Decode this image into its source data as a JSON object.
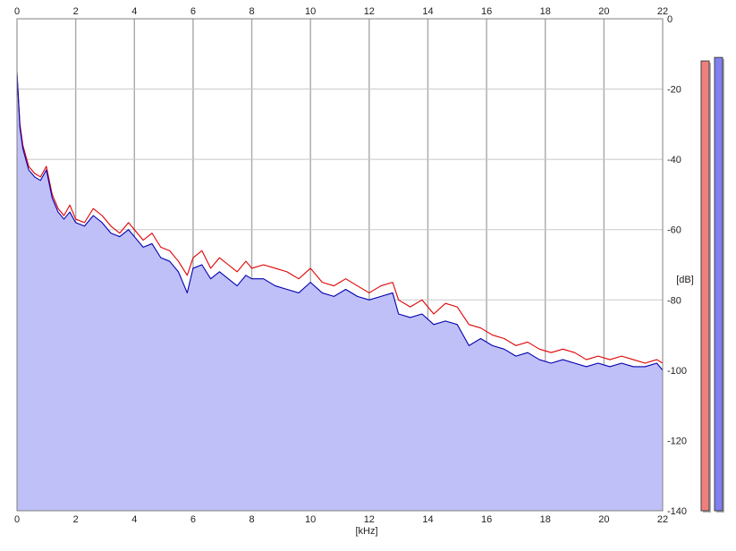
{
  "chart_data": {
    "type": "area",
    "xlabel": "[kHz]",
    "ylabel": "[dB]",
    "xlim": [
      0,
      22
    ],
    "ylim": [
      -140,
      0
    ],
    "x_ticks": [
      0,
      2,
      4,
      6,
      8,
      10,
      12,
      14,
      16,
      18,
      20,
      22
    ],
    "y_ticks": [
      0,
      -20,
      -40,
      -60,
      -80,
      -100,
      -120,
      -140
    ],
    "x_tick_labels": [
      "0",
      "2",
      "4",
      "6",
      "8",
      "10",
      "12",
      "14",
      "16",
      "18",
      "20",
      "22"
    ],
    "y_tick_labels": [
      "0",
      "-20",
      "-40",
      "-60",
      "-80",
      "-100",
      "-120",
      "-140"
    ],
    "grid": true,
    "fill_color": "#c0c0f8",
    "series": [
      {
        "color": "#e00000",
        "x": [
          0,
          0.1,
          0.2,
          0.4,
          0.6,
          0.8,
          1.0,
          1.2,
          1.4,
          1.6,
          1.8,
          2.0,
          2.3,
          2.6,
          2.9,
          3.2,
          3.5,
          3.8,
          4.0,
          4.3,
          4.6,
          4.9,
          5.2,
          5.5,
          5.8,
          6.0,
          6.3,
          6.6,
          6.9,
          7.2,
          7.5,
          7.8,
          8.0,
          8.4,
          8.8,
          9.2,
          9.6,
          10.0,
          10.4,
          10.8,
          11.2,
          11.6,
          12.0,
          12.4,
          12.8,
          13.0,
          13.4,
          13.8,
          14.2,
          14.6,
          15.0,
          15.4,
          15.8,
          16.2,
          16.6,
          17.0,
          17.4,
          17.8,
          18.2,
          18.6,
          19.0,
          19.4,
          19.8,
          20.2,
          20.6,
          21.0,
          21.4,
          21.8,
          22.0
        ],
        "values": [
          -16,
          -30,
          -36,
          -42,
          -44,
          -45,
          -42,
          -50,
          -54,
          -56,
          -53,
          -57,
          -58,
          -54,
          -56,
          -59,
          -61,
          -58,
          -60,
          -63,
          -61,
          -65,
          -66,
          -69,
          -73,
          -68,
          -66,
          -71,
          -68,
          -70,
          -72,
          -69,
          -71,
          -70,
          -71,
          -72,
          -74,
          -71,
          -75,
          -76,
          -74,
          -76,
          -78,
          -76,
          -75,
          -80,
          -82,
          -80,
          -84,
          -81,
          -82,
          -87,
          -88,
          -90,
          -91,
          -93,
          -92,
          -94,
          -95,
          -94,
          -95,
          -97,
          -96,
          -97,
          -96,
          -97,
          -98,
          -97,
          -98
        ]
      },
      {
        "color": "#0000b0",
        "x": [
          0,
          0.1,
          0.2,
          0.4,
          0.6,
          0.8,
          1.0,
          1.2,
          1.4,
          1.6,
          1.8,
          2.0,
          2.3,
          2.6,
          2.9,
          3.2,
          3.5,
          3.8,
          4.0,
          4.3,
          4.6,
          4.9,
          5.2,
          5.5,
          5.8,
          6.0,
          6.3,
          6.6,
          6.9,
          7.2,
          7.5,
          7.8,
          8.0,
          8.4,
          8.8,
          9.2,
          9.6,
          10.0,
          10.4,
          10.8,
          11.2,
          11.6,
          12.0,
          12.4,
          12.8,
          13.0,
          13.4,
          13.8,
          14.2,
          14.6,
          15.0,
          15.4,
          15.8,
          16.2,
          16.6,
          17.0,
          17.4,
          17.8,
          18.2,
          18.6,
          19.0,
          19.4,
          19.8,
          20.2,
          20.6,
          21.0,
          21.4,
          21.8,
          22.0
        ],
        "values": [
          -15,
          -31,
          -37,
          -43,
          -45,
          -46,
          -43,
          -51,
          -55,
          -57,
          -55,
          -58,
          -59,
          -56,
          -58,
          -61,
          -62,
          -60,
          -62,
          -65,
          -64,
          -68,
          -69,
          -72,
          -78,
          -71,
          -70,
          -74,
          -72,
          -74,
          -76,
          -73,
          -74,
          -74,
          -76,
          -77,
          -78,
          -75,
          -78,
          -79,
          -77,
          -79,
          -80,
          -79,
          -78,
          -84,
          -85,
          -84,
          -87,
          -86,
          -87,
          -93,
          -91,
          -93,
          -94,
          -96,
          -95,
          -97,
          -98,
          -97,
          -98,
          -99,
          -98,
          -99,
          -98,
          -99,
          -99,
          -98,
          -100
        ]
      }
    ],
    "level_meters": [
      {
        "color": "#f08080",
        "level_db": -12
      },
      {
        "color": "#8080f0",
        "level_db": -11
      }
    ]
  }
}
